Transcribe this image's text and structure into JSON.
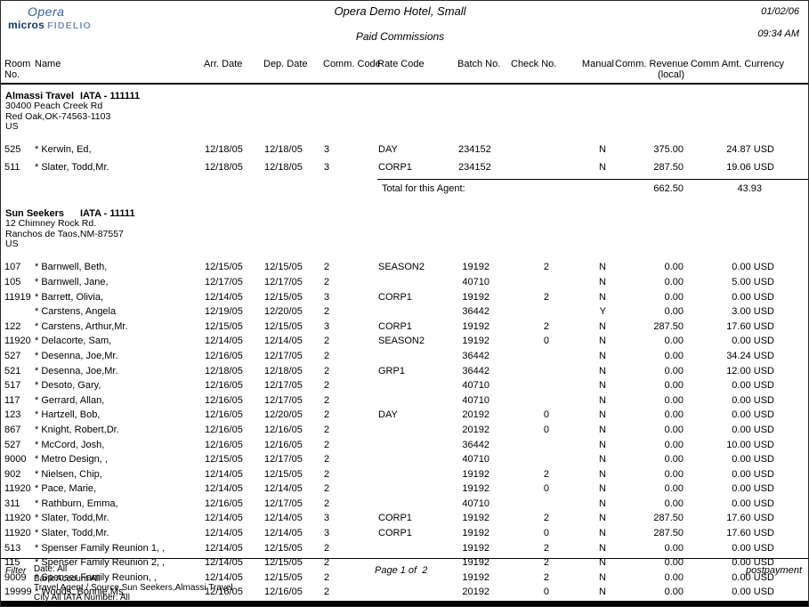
{
  "logo": {
    "opera": "Opera",
    "micros": "micros",
    "fidelio": "FIDELIO",
    "brand_color": "#33619f"
  },
  "header": {
    "hotel_title": "Opera Demo Hotel, Small",
    "report_title": "Paid Commissions",
    "date": "01/02/06",
    "time": "09:34 AM"
  },
  "columns": [
    {
      "label": "Room",
      "label2": "No."
    },
    {
      "label": "Name",
      "label2": ""
    },
    {
      "label": "Arr. Date",
      "label2": ""
    },
    {
      "label": "Dep. Date",
      "label2": ""
    },
    {
      "label": "Comm. Code",
      "label2": ""
    },
    {
      "label": "Rate Code",
      "label2": ""
    },
    {
      "label": "Batch No.",
      "label2": ""
    },
    {
      "label": "Check No.",
      "label2": ""
    },
    {
      "label": "Manual",
      "label2": ""
    },
    {
      "label": "Comm. Revenue",
      "label2": "(local)"
    },
    {
      "label": "Comm Amt. Currency",
      "label2": ""
    }
  ],
  "agents": [
    {
      "name": "Almassi Travel",
      "iata": "IATA - 111111",
      "address": [
        "30400 Peach Creek Rd",
        "Red Oak,OK-74563-1103",
        "US"
      ],
      "rows": [
        {
          "room": "525",
          "name": "* Kerwin, Ed,",
          "arr": "12/18/05",
          "dep": "12/18/05",
          "comm": "3",
          "rate": "DAY",
          "batch": "234152",
          "check": "",
          "manual": "N",
          "revenue": "375.00",
          "amount": "24.87 USD"
        },
        {
          "room": "511",
          "name": "* Slater, Todd,Mr.",
          "arr": "12/18/05",
          "dep": "12/18/05",
          "comm": "3",
          "rate": "CORP1",
          "batch": "234152",
          "check": "",
          "manual": "N",
          "revenue": "287.50",
          "amount": "19.06 USD"
        }
      ],
      "total": {
        "label": "Total for this Agent:",
        "revenue": "662.50",
        "amount": "43.93"
      }
    },
    {
      "name": "Sun Seekers",
      "iata": "IATA - 11111",
      "address": [
        "12 Chimney Rock Rd.",
        "Ranchos de Taos,NM-87557",
        "US"
      ],
      "rows": [
        {
          "room": "107",
          "name": "* Barnwell, Beth,",
          "arr": "12/15/05",
          "dep": "12/15/05",
          "comm": "2",
          "rate": "SEASON2",
          "batch": "19192",
          "check": "2",
          "manual": "N",
          "revenue": "0.00",
          "amount": "0.00 USD"
        },
        {
          "room": "105",
          "name": "* Barnwell, Jane,",
          "arr": "12/17/05",
          "dep": "12/17/05",
          "comm": "2",
          "rate": "",
          "batch": "40710",
          "check": "",
          "manual": "N",
          "revenue": "0.00",
          "amount": "5.00 USD"
        },
        {
          "room": "11919",
          "name": "* Barrett, Olivia,",
          "arr": "12/14/05",
          "dep": "12/15/05",
          "comm": "3",
          "rate": "CORP1",
          "batch": "19192",
          "check": "2",
          "manual": "N",
          "revenue": "0.00",
          "amount": "0.00 USD"
        },
        {
          "room": "",
          "name": "* Carstens, Angela",
          "arr": "12/19/05",
          "dep": "12/20/05",
          "comm": "2",
          "rate": "",
          "batch": "36442",
          "check": "",
          "manual": "Y",
          "revenue": "0.00",
          "amount": "3.00 USD"
        },
        {
          "room": "122",
          "name": "* Carstens, Arthur,Mr.",
          "arr": "12/15/05",
          "dep": "12/15/05",
          "comm": "3",
          "rate": "CORP1",
          "batch": "19192",
          "check": "2",
          "manual": "N",
          "revenue": "287.50",
          "amount": "17.60 USD"
        },
        {
          "room": "11920",
          "name": "* Delacorte, Sam,",
          "arr": "12/14/05",
          "dep": "12/14/05",
          "comm": "2",
          "rate": "SEASON2",
          "batch": "19192",
          "check": "0",
          "manual": "N",
          "revenue": "0.00",
          "amount": "0.00 USD"
        },
        {
          "room": "527",
          "name": "* Desenna, Joe,Mr.",
          "arr": "12/16/05",
          "dep": "12/17/05",
          "comm": "2",
          "rate": "",
          "batch": "36442",
          "check": "",
          "manual": "N",
          "revenue": "0.00",
          "amount": "34.24 USD"
        },
        {
          "room": "521",
          "name": "* Desenna, Joe,Mr.",
          "arr": "12/18/05",
          "dep": "12/18/05",
          "comm": "2",
          "rate": "GRP1",
          "batch": "36442",
          "check": "",
          "manual": "N",
          "revenue": "0.00",
          "amount": "12.00 USD"
        },
        {
          "room": "517",
          "name": "* Desoto, Gary,",
          "arr": "12/16/05",
          "dep": "12/17/05",
          "comm": "2",
          "rate": "",
          "batch": "40710",
          "check": "",
          "manual": "N",
          "revenue": "0.00",
          "amount": "0.00 USD"
        },
        {
          "room": "117",
          "name": "* Gerrard, Allan,",
          "arr": "12/16/05",
          "dep": "12/17/05",
          "comm": "2",
          "rate": "",
          "batch": "40710",
          "check": "",
          "manual": "N",
          "revenue": "0.00",
          "amount": "0.00 USD"
        },
        {
          "room": "123",
          "name": "* Hartzell, Bob,",
          "arr": "12/16/05",
          "dep": "12/20/05",
          "comm": "2",
          "rate": "DAY",
          "batch": "20192",
          "check": "0",
          "manual": "N",
          "revenue": "0.00",
          "amount": "0.00 USD"
        },
        {
          "room": "867",
          "name": "* Knight, Robert,Dr.",
          "arr": "12/16/05",
          "dep": "12/16/05",
          "comm": "2",
          "rate": "",
          "batch": "20192",
          "check": "0",
          "manual": "N",
          "revenue": "0.00",
          "amount": "0.00 USD"
        },
        {
          "room": "527",
          "name": "* McCord, Josh,",
          "arr": "12/16/05",
          "dep": "12/16/05",
          "comm": "2",
          "rate": "",
          "batch": "36442",
          "check": "",
          "manual": "N",
          "revenue": "0.00",
          "amount": "10.00 USD"
        },
        {
          "room": "9000",
          "name": "* Metro Design, ,",
          "arr": "12/15/05",
          "dep": "12/17/05",
          "comm": "2",
          "rate": "",
          "batch": "40710",
          "check": "",
          "manual": "N",
          "revenue": "0.00",
          "amount": "0.00 USD"
        },
        {
          "room": "902",
          "name": "* Nielsen, Chip,",
          "arr": "12/14/05",
          "dep": "12/15/05",
          "comm": "2",
          "rate": "",
          "batch": "19192",
          "check": "2",
          "manual": "N",
          "revenue": "0.00",
          "amount": "0.00 USD"
        },
        {
          "room": "11920",
          "name": "* Pace, Marie,",
          "arr": "12/14/05",
          "dep": "12/14/05",
          "comm": "2",
          "rate": "",
          "batch": "19192",
          "check": "0",
          "manual": "N",
          "revenue": "0.00",
          "amount": "0.00 USD"
        },
        {
          "room": "311",
          "name": "* Rathburn, Emma,",
          "arr": "12/16/05",
          "dep": "12/17/05",
          "comm": "2",
          "rate": "",
          "batch": "40710",
          "check": "",
          "manual": "N",
          "revenue": "0.00",
          "amount": "0.00 USD"
        },
        {
          "room": "11920",
          "name": "* Slater, Todd,Mr.",
          "arr": "12/14/05",
          "dep": "12/14/05",
          "comm": "3",
          "rate": "CORP1",
          "batch": "19192",
          "check": "2",
          "manual": "N",
          "revenue": "287.50",
          "amount": "17.60 USD"
        },
        {
          "room": "11920",
          "name": "* Slater, Todd,Mr.",
          "arr": "12/14/05",
          "dep": "12/14/05",
          "comm": "3",
          "rate": "CORP1",
          "batch": "19192",
          "check": "0",
          "manual": "N",
          "revenue": "287.50",
          "amount": "17.60 USD"
        },
        {
          "room": "513",
          "name": "* Spenser Family Reunion 1, ,",
          "arr": "12/14/05",
          "dep": "12/15/05",
          "comm": "2",
          "rate": "",
          "batch": "19192",
          "check": "2",
          "manual": "N",
          "revenue": "0.00",
          "amount": "0.00 USD"
        },
        {
          "room": "115",
          "name": "* Spenser Family Reunion 2, ,",
          "arr": "12/14/05",
          "dep": "12/15/05",
          "comm": "2",
          "rate": "",
          "batch": "19192",
          "check": "2",
          "manual": "N",
          "revenue": "0.00",
          "amount": "0.00 USD"
        },
        {
          "room": "9009",
          "name": "* Spenser Family Reunion, ,",
          "arr": "12/14/05",
          "dep": "12/15/05",
          "comm": "2",
          "rate": "",
          "batch": "19192",
          "check": "2",
          "manual": "N",
          "revenue": "0.00",
          "amount": "0.00 USD"
        },
        {
          "room": "19999",
          "name": "* Woods, Bonnie,Ms.",
          "arr": "12/16/05",
          "dep": "12/16/05",
          "comm": "2",
          "rate": "",
          "batch": "20192",
          "check": "0",
          "manual": "N",
          "revenue": "0.00",
          "amount": "0.00 USD"
        }
      ],
      "total": null
    }
  ],
  "footer": {
    "filter_label": "Filter",
    "filter_lines": [
      "Date: All",
      "Bank Account All",
      "Travel Agent / Source Sun Seekers,Almassi Travel",
      "City All IATA Number: All"
    ],
    "page": "Page 1 of  2",
    "report_id": "postpayment"
  }
}
